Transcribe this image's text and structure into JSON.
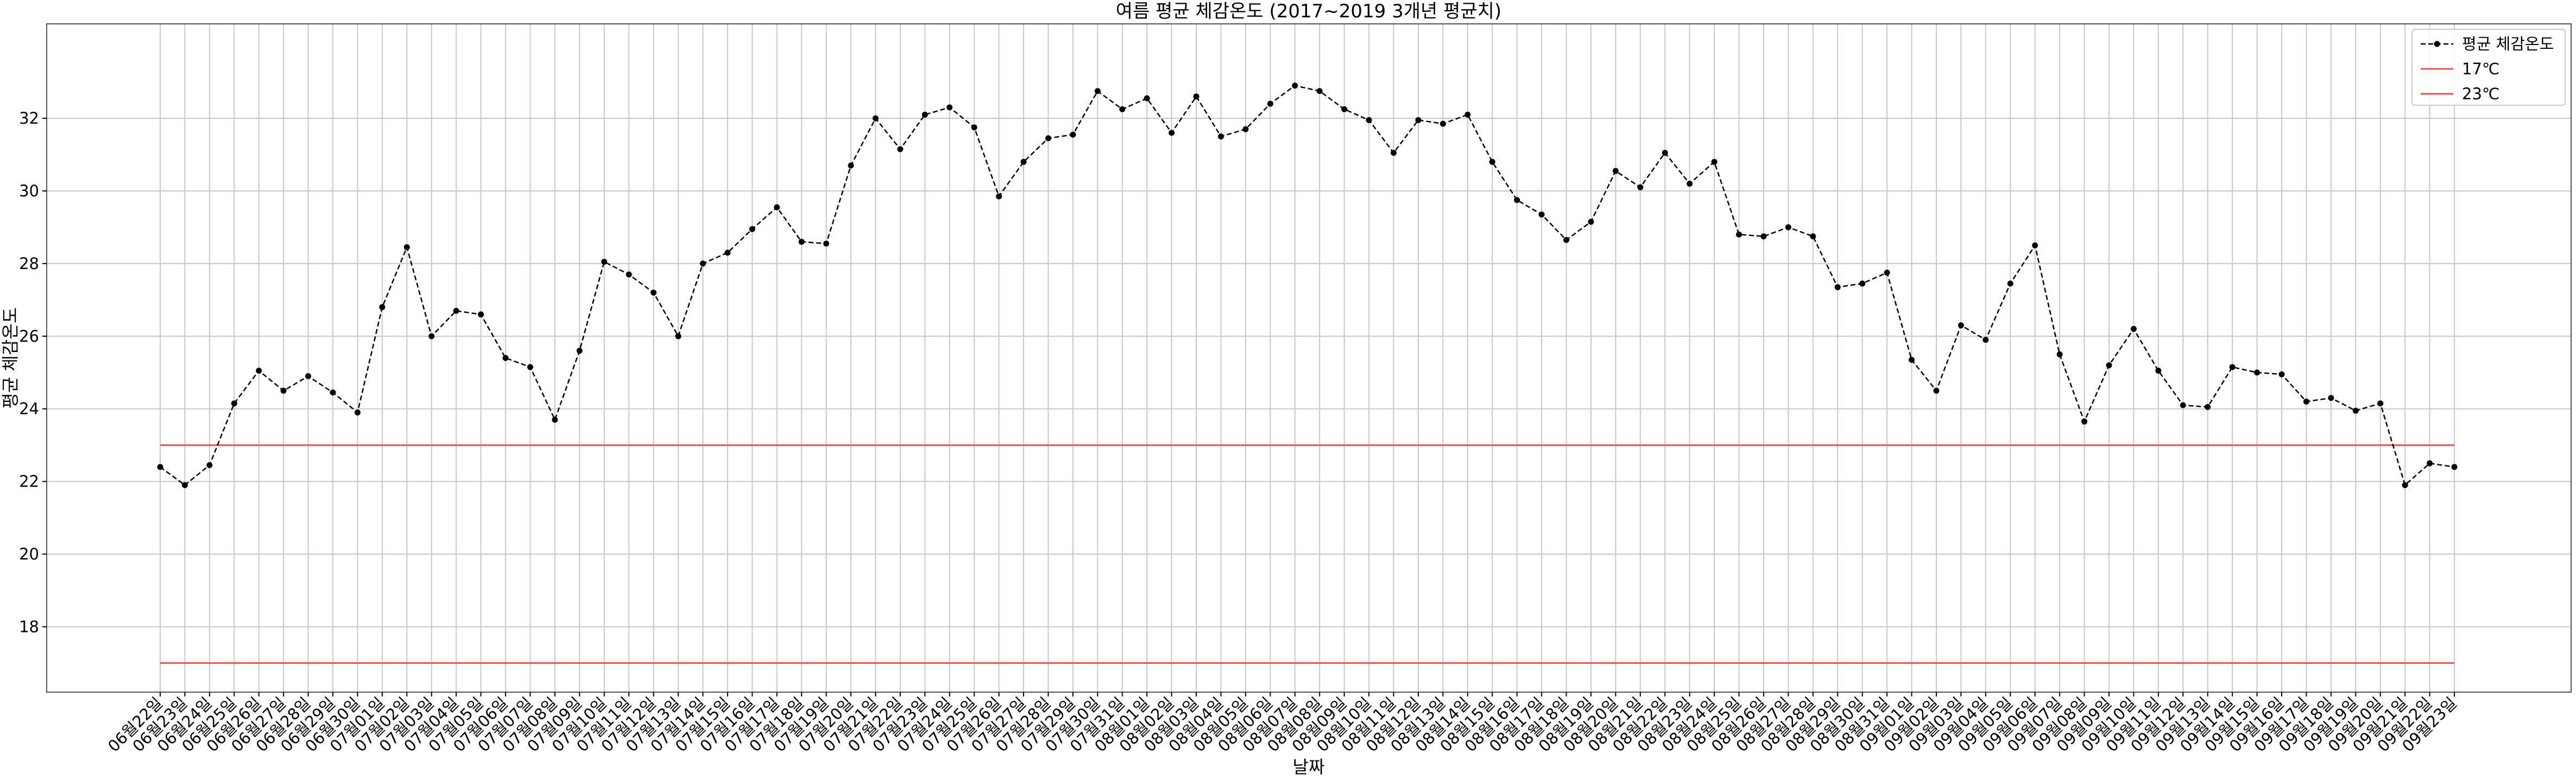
{
  "chart_data": {
    "type": "line",
    "title": "여름 평균 체감온도 (2017~2019 3개년 평균치)",
    "xlabel": "날짜",
    "ylabel": "평균 체감온도",
    "ylim": [
      16.2,
      34.6
    ],
    "yticks": [
      18,
      20,
      22,
      24,
      26,
      28,
      30,
      32
    ],
    "grid": true,
    "legend_position": "top-right",
    "categories": [
      "06월22일",
      "06월23일",
      "06월24일",
      "06월25일",
      "06월26일",
      "06월27일",
      "06월28일",
      "06월29일",
      "06월30일",
      "07월01일",
      "07월02일",
      "07월03일",
      "07월04일",
      "07월05일",
      "07월06일",
      "07월07일",
      "07월08일",
      "07월09일",
      "07월10일",
      "07월11일",
      "07월12일",
      "07월13일",
      "07월14일",
      "07월15일",
      "07월16일",
      "07월17일",
      "07월18일",
      "07월19일",
      "07월20일",
      "07월21일",
      "07월22일",
      "07월23일",
      "07월24일",
      "07월25일",
      "07월26일",
      "07월27일",
      "07월28일",
      "07월29일",
      "07월30일",
      "07월31일",
      "08월01일",
      "08월02일",
      "08월03일",
      "08월04일",
      "08월05일",
      "08월06일",
      "08월07일",
      "08월08일",
      "08월09일",
      "08월10일",
      "08월11일",
      "08월12일",
      "08월13일",
      "08월14일",
      "08월15일",
      "08월16일",
      "08월17일",
      "08월18일",
      "08월19일",
      "08월20일",
      "08월21일",
      "08월22일",
      "08월23일",
      "08월24일",
      "08월25일",
      "08월26일",
      "08월27일",
      "08월28일",
      "08월29일",
      "08월30일",
      "08월31일",
      "09월01일",
      "09월02일",
      "09월03일",
      "09월04일",
      "09월05일",
      "09월06일",
      "09월07일",
      "09월08일",
      "09월09일",
      "09월10일",
      "09월11일",
      "09월12일",
      "09월13일",
      "09월14일",
      "09월15일",
      "09월16일",
      "09월17일",
      "09월18일",
      "09월19일",
      "09월20일",
      "09월21일",
      "09월22일",
      "09월23일"
    ],
    "series": [
      {
        "name": "평균 체감온도",
        "color": "#000000",
        "style": "dashed line with dot markers",
        "values": [
          22.4,
          21.9,
          22.45,
          24.15,
          25.05,
          24.5,
          24.9,
          24.45,
          23.9,
          26.8,
          28.45,
          26.0,
          26.7,
          26.6,
          25.4,
          25.15,
          23.7,
          25.6,
          28.05,
          27.7,
          27.2,
          26.0,
          28.0,
          28.3,
          28.95,
          29.55,
          28.6,
          28.55,
          30.7,
          32.0,
          31.15,
          32.1,
          32.3,
          31.75,
          29.85,
          30.8,
          31.45,
          31.55,
          32.75,
          32.25,
          32.55,
          31.6,
          32.6,
          31.5,
          31.7,
          32.4,
          32.9,
          32.75,
          32.25,
          31.95,
          31.05,
          31.95,
          31.85,
          32.1,
          30.8,
          29.75,
          29.35,
          28.65,
          29.15,
          30.55,
          30.1,
          31.05,
          30.2,
          30.8,
          28.8,
          28.75,
          29.0,
          28.75,
          27.35,
          27.45,
          27.75,
          25.35,
          24.5,
          26.3,
          25.9,
          27.45,
          28.5,
          25.5,
          23.65,
          25.2,
          26.2,
          25.05,
          24.1,
          24.05,
          25.15,
          25.0,
          24.95,
          24.2,
          24.3,
          23.95,
          24.15,
          21.9,
          22.5,
          22.4
        ]
      },
      {
        "name": "17℃",
        "color": "#e8504a",
        "style": "solid horizontal line",
        "value": 17
      },
      {
        "name": "23℃",
        "color": "#e8504a",
        "style": "solid horizontal line",
        "value": 23
      }
    ]
  }
}
